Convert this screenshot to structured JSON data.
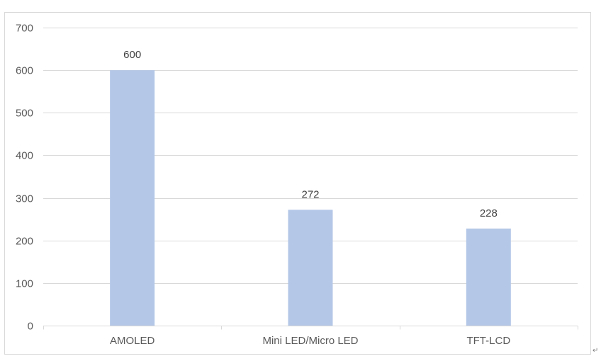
{
  "chart_data": {
    "type": "bar",
    "categories": [
      "AMOLED",
      "Mini LED/Micro LED",
      "TFT-LCD"
    ],
    "values": [
      600,
      272,
      228
    ],
    "title": "",
    "xlabel": "",
    "ylabel": "",
    "ylim": [
      0,
      700
    ],
    "yticks": [
      0,
      100,
      200,
      300,
      400,
      500,
      600,
      700
    ],
    "grid": true,
    "legend": "none",
    "data_labels": true,
    "bar_color": "#b4c7e7"
  },
  "page": {
    "return_mark": "↵"
  }
}
